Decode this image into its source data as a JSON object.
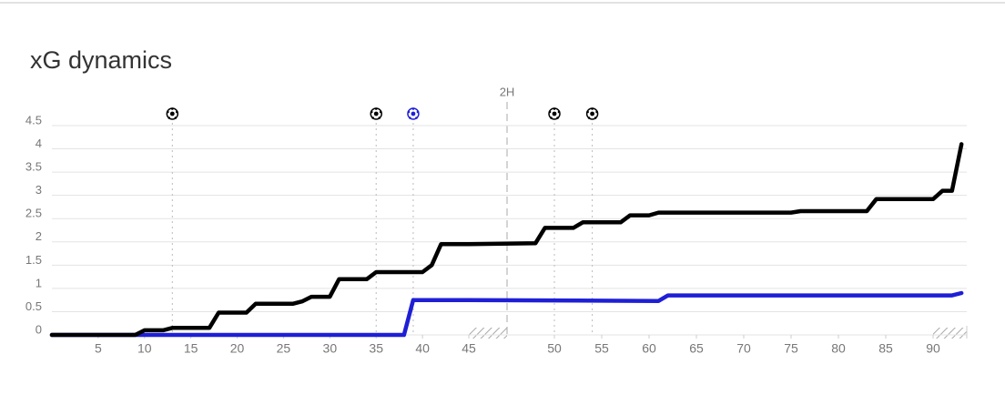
{
  "chart_data": {
    "type": "line",
    "title": "xG dynamics",
    "half_label": "2H",
    "series": [
      {
        "color": "#000000",
        "x": [
          0,
          9,
          10,
          12,
          13,
          17,
          18,
          21,
          22,
          26,
          27,
          28,
          30,
          31,
          34,
          35,
          40,
          41,
          42,
          45,
          48,
          49,
          52,
          53,
          57,
          58,
          60,
          61,
          75,
          76,
          83,
          84,
          90,
          91,
          92,
          93
        ],
        "values": [
          0,
          0,
          0.1,
          0.1,
          0.15,
          0.15,
          0.48,
          0.48,
          0.67,
          0.67,
          0.72,
          0.82,
          0.82,
          1.2,
          1.2,
          1.35,
          1.35,
          1.5,
          1.95,
          1.95,
          1.97,
          2.3,
          2.3,
          2.42,
          2.42,
          2.57,
          2.57,
          2.63,
          2.63,
          2.66,
          2.66,
          2.92,
          2.92,
          3.1,
          3.1,
          4.1
        ]
      },
      {
        "color": "#1f1fd6",
        "x": [
          0,
          38,
          39,
          45,
          61,
          62,
          92,
          93
        ],
        "values": [
          0,
          0,
          0.75,
          0.75,
          0.73,
          0.85,
          0.85,
          0.9
        ]
      }
    ],
    "goals": [
      {
        "x": 13,
        "color": "#000000"
      },
      {
        "x": 35,
        "color": "#000000"
      },
      {
        "x": 39,
        "color": "#1f1fd6"
      },
      {
        "x": 50,
        "color": "#000000"
      },
      {
        "x": 54,
        "color": "#000000"
      }
    ],
    "xlim": [
      0,
      93
    ],
    "xticks": [
      5,
      10,
      15,
      20,
      25,
      30,
      35,
      40,
      45,
      50,
      55,
      60,
      65,
      70,
      75,
      80,
      85,
      90
    ],
    "ylim": [
      0,
      4.5
    ],
    "yticks": [
      0,
      0.5,
      1,
      1.5,
      2,
      2.5,
      3,
      3.5,
      4,
      4.5
    ],
    "grid": true
  }
}
